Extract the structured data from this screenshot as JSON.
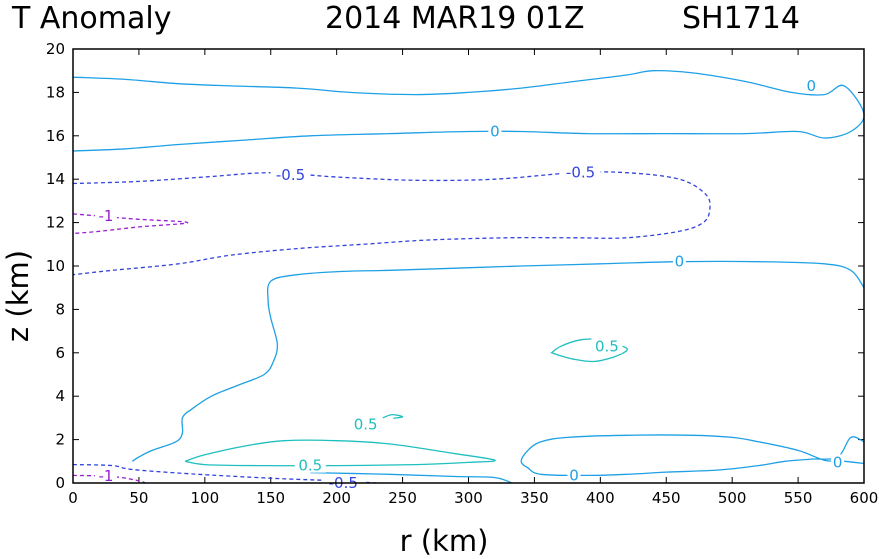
{
  "chart_data": {
    "type": "contour",
    "title": {
      "field": "T Anomaly",
      "time": "2014 MAR19 01Z",
      "storm": "SH1714"
    },
    "xlabel": "r (km)",
    "ylabel": "z (km)",
    "xlim": [
      0,
      600
    ],
    "ylim": [
      0,
      20
    ],
    "xticks": [
      0,
      50,
      100,
      150,
      200,
      250,
      300,
      350,
      400,
      450,
      500,
      550,
      600
    ],
    "yticks": [
      0,
      2,
      4,
      6,
      8,
      10,
      12,
      14,
      16,
      18,
      20
    ],
    "colors": {
      "zero": "#1fa0e6",
      "positive": "#1fbfbf",
      "negative_half": "#3344dd",
      "negative_one": "#9a1fd0"
    },
    "contours": [
      {
        "level": 0,
        "color_key": "zero",
        "dashed": false,
        "closed": false,
        "points": [
          [
            0,
            18.7
          ],
          [
            40,
            18.6
          ],
          [
            80,
            18.4
          ],
          [
            120,
            18.3
          ],
          [
            170,
            18.2
          ],
          [
            210,
            18.0
          ],
          [
            260,
            17.9
          ],
          [
            300,
            18.0
          ],
          [
            340,
            18.2
          ],
          [
            380,
            18.5
          ],
          [
            420,
            18.8
          ],
          [
            440,
            19.0
          ],
          [
            470,
            18.9
          ],
          [
            510,
            18.5
          ],
          [
            545,
            18.0
          ],
          [
            570,
            17.9
          ],
          [
            585,
            18.3
          ],
          [
            600,
            17.0
          ],
          [
            590,
            16.2
          ],
          [
            570,
            15.9
          ],
          [
            550,
            16.2
          ],
          [
            510,
            16.1
          ],
          [
            450,
            16.1
          ],
          [
            390,
            16.1
          ],
          [
            340,
            16.2
          ],
          [
            300,
            16.2
          ],
          [
            240,
            16.1
          ],
          [
            180,
            16.0
          ],
          [
            130,
            15.8
          ],
          [
            80,
            15.6
          ],
          [
            40,
            15.4
          ],
          [
            0,
            15.3
          ]
        ]
      },
      {
        "level": 0,
        "color_key": "zero",
        "dashed": false,
        "closed": false,
        "points": [
          [
            600,
            9.0
          ],
          [
            590,
            9.8
          ],
          [
            570,
            10.1
          ],
          [
            520,
            10.2
          ],
          [
            460,
            10.2
          ],
          [
            400,
            10.1
          ],
          [
            340,
            10.0
          ],
          [
            290,
            9.9
          ],
          [
            240,
            9.8
          ],
          [
            205,
            9.75
          ],
          [
            170,
            9.6
          ],
          [
            150,
            9.3
          ],
          [
            148,
            8.4
          ],
          [
            150,
            7.6
          ],
          [
            155,
            6.4
          ],
          [
            152,
            5.6
          ],
          [
            145,
            5.0
          ],
          [
            125,
            4.5
          ],
          [
            105,
            4.0
          ],
          [
            90,
            3.4
          ],
          [
            83,
            3.0
          ],
          [
            83,
            2.3
          ],
          [
            78,
            1.9
          ],
          [
            60,
            1.5
          ],
          [
            50,
            1.2
          ],
          [
            45,
            1.0
          ]
        ]
      },
      {
        "level": 0,
        "color_key": "zero",
        "dashed": false,
        "closed": false,
        "points": [
          [
            600,
            1.9
          ],
          [
            590,
            2.1
          ],
          [
            580,
            1.2
          ],
          [
            560,
            1.1
          ],
          [
            540,
            1.0
          ],
          [
            520,
            0.8
          ],
          [
            490,
            0.6
          ],
          [
            450,
            0.5
          ],
          [
            420,
            0.4
          ],
          [
            390,
            0.35
          ],
          [
            355,
            0.4
          ],
          [
            345,
            0.7
          ],
          [
            340,
            1.0
          ],
          [
            345,
            1.5
          ],
          [
            355,
            1.9
          ],
          [
            375,
            2.1
          ],
          [
            420,
            2.2
          ],
          [
            470,
            2.2
          ],
          [
            500,
            2.1
          ],
          [
            520,
            1.9
          ],
          [
            550,
            1.5
          ],
          [
            570,
            1.05
          ],
          [
            585,
            1.0
          ],
          [
            600,
            0.9
          ]
        ]
      },
      {
        "level": 0,
        "color_key": "zero",
        "dashed": false,
        "closed": false,
        "points": [
          [
            180,
            0.48
          ],
          [
            240,
            0.4
          ],
          [
            290,
            0.3
          ],
          [
            320,
            0.25
          ],
          [
            333,
            0.0
          ]
        ]
      },
      {
        "level": 0.5,
        "color_key": "positive",
        "dashed": false,
        "closed": true,
        "points": [
          [
            85,
            1.0
          ],
          [
            100,
            1.3
          ],
          [
            130,
            1.7
          ],
          [
            160,
            1.95
          ],
          [
            200,
            1.95
          ],
          [
            240,
            1.8
          ],
          [
            290,
            1.35
          ],
          [
            320,
            1.05
          ],
          [
            300,
            0.95
          ],
          [
            260,
            0.85
          ],
          [
            200,
            0.8
          ],
          [
            140,
            0.8
          ],
          [
            100,
            0.85
          ],
          [
            85,
            1.0
          ]
        ]
      },
      {
        "level": 0.5,
        "color_key": "positive",
        "dashed": false,
        "closed": true,
        "points": [
          [
            363,
            6.0
          ],
          [
            370,
            6.3
          ],
          [
            385,
            6.6
          ],
          [
            400,
            6.6
          ],
          [
            417,
            6.3
          ],
          [
            420,
            6.1
          ],
          [
            410,
            5.8
          ],
          [
            395,
            5.6
          ],
          [
            380,
            5.7
          ],
          [
            368,
            5.9
          ],
          [
            363,
            6.0
          ]
        ]
      },
      {
        "level": 0.5,
        "color_key": "positive",
        "dashed": false,
        "closed": false,
        "points": [
          [
            235,
            3.0
          ],
          [
            242,
            3.15
          ],
          [
            250,
            3.05
          ],
          [
            243,
            2.98
          ]
        ]
      },
      {
        "level": -0.5,
        "color_key": "negative_half",
        "dashed": true,
        "closed": false,
        "points": [
          [
            0,
            13.8
          ],
          [
            50,
            13.9
          ],
          [
            100,
            14.1
          ],
          [
            150,
            14.3
          ],
          [
            200,
            14.1
          ],
          [
            260,
            13.95
          ],
          [
            320,
            14.0
          ],
          [
            380,
            14.3
          ],
          [
            420,
            14.3
          ],
          [
            460,
            14.0
          ],
          [
            480,
            13.3
          ],
          [
            483,
            12.6
          ],
          [
            478,
            12.0
          ],
          [
            460,
            11.6
          ],
          [
            420,
            11.3
          ],
          [
            380,
            11.3
          ],
          [
            330,
            11.3
          ],
          [
            270,
            11.2
          ],
          [
            220,
            11.0
          ],
          [
            170,
            10.8
          ],
          [
            120,
            10.5
          ],
          [
            80,
            10.1
          ],
          [
            30,
            9.8
          ],
          [
            0,
            9.6
          ]
        ]
      },
      {
        "level": -0.5,
        "color_key": "negative_half",
        "dashed": true,
        "closed": false,
        "points": [
          [
            0,
            0.85
          ],
          [
            30,
            0.8
          ],
          [
            45,
            0.62
          ],
          [
            90,
            0.42
          ],
          [
            150,
            0.22
          ],
          [
            200,
            0.1
          ],
          [
            230,
            0.0
          ]
        ]
      },
      {
        "level": -1,
        "color_key": "negative_one",
        "dashed": true,
        "closed": false,
        "points": [
          [
            0,
            12.4
          ],
          [
            20,
            12.3
          ],
          [
            50,
            12.15
          ],
          [
            87,
            12.0
          ],
          [
            50,
            11.8
          ],
          [
            20,
            11.6
          ],
          [
            0,
            11.5
          ]
        ]
      },
      {
        "level": -1,
        "color_key": "negative_one",
        "dashed": true,
        "closed": false,
        "points": [
          [
            0,
            0.35
          ],
          [
            30,
            0.3
          ],
          [
            50,
            0.1
          ],
          [
            55,
            0.0
          ]
        ]
      }
    ],
    "contour_labels": [
      {
        "text": "0",
        "x": 560,
        "y": 18.3,
        "color_key": "zero"
      },
      {
        "text": "0",
        "x": 320,
        "y": 16.2,
        "color_key": "zero"
      },
      {
        "text": "0",
        "x": 460,
        "y": 10.2,
        "color_key": "zero"
      },
      {
        "text": "0",
        "x": 580,
        "y": 0.95,
        "color_key": "zero"
      },
      {
        "text": "0",
        "x": 380,
        "y": 0.35,
        "color_key": "zero"
      },
      {
        "text": "-0.5",
        "x": 165,
        "y": 14.2,
        "color_key": "negative_half"
      },
      {
        "text": "-0.5",
        "x": 385,
        "y": 14.3,
        "color_key": "negative_half"
      },
      {
        "text": "-0.5",
        "x": 205,
        "y": 0.0,
        "color_key": "negative_half"
      },
      {
        "text": "0.5",
        "x": 405,
        "y": 6.3,
        "color_key": "positive"
      },
      {
        "text": "0.5",
        "x": 222,
        "y": 2.7,
        "color_key": "positive"
      },
      {
        "text": "0.5",
        "x": 180,
        "y": 0.8,
        "color_key": "positive"
      },
      {
        "text": "-1",
        "x": 25,
        "y": 12.3,
        "color_key": "negative_one"
      },
      {
        "text": "-1",
        "x": 25,
        "y": 0.32,
        "color_key": "negative_one"
      }
    ]
  }
}
